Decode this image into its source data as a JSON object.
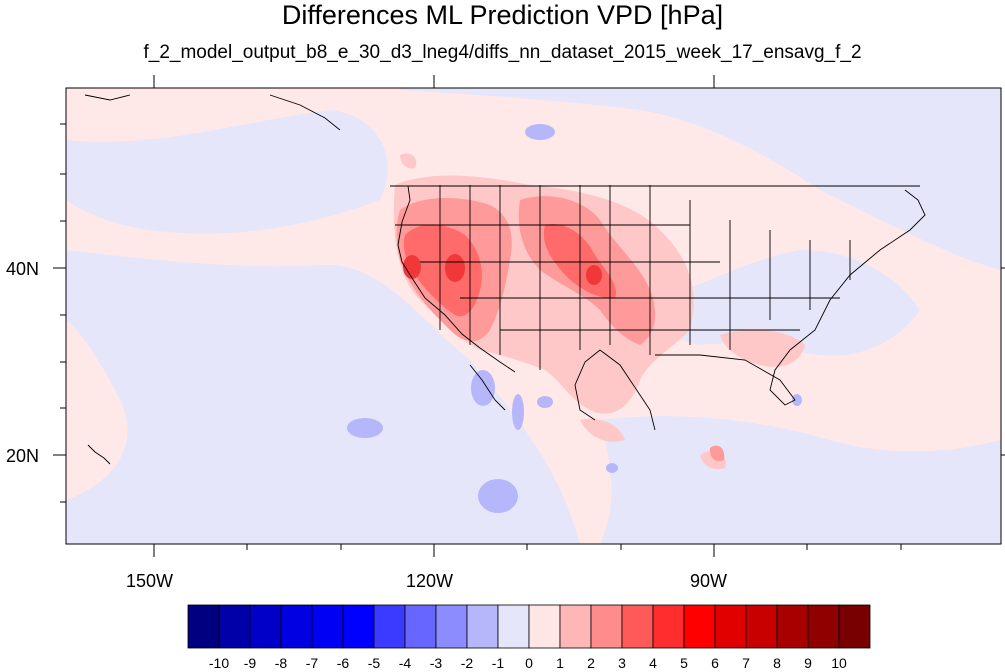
{
  "title": "Differences ML Prediction VPD [hPa]",
  "subtitle": "f_2_model_output_b8_e_30_d3_lneg4/diffs_nn_dataset_2015_week_17_ensavg_f_2",
  "axes": {
    "lat_labels": [
      "40N",
      "20N"
    ],
    "lon_labels": [
      "150W",
      "120W",
      "90W"
    ]
  },
  "colorbar": {
    "labels": [
      "-10",
      "-9",
      "-8",
      "-7",
      "-6",
      "-5",
      "-4",
      "-3",
      "-2",
      "-1",
      "0",
      "1",
      "2",
      "3",
      "4",
      "5",
      "6",
      "7",
      "8",
      "9",
      "10"
    ],
    "colors": [
      "#000080",
      "#0000a8",
      "#0000c8",
      "#0000e0",
      "#0000f5",
      "#0000ff",
      "#3b3bff",
      "#6767ff",
      "#8c8cff",
      "#b6b6fb",
      "#e6e6fa",
      "#ffe6e6",
      "#ffb6b6",
      "#ff8c8c",
      "#ff5a5a",
      "#ff2d2d",
      "#ff0000",
      "#e00000",
      "#c80000",
      "#a80000",
      "#900000",
      "#780000"
    ]
  },
  "colors": {
    "ocean_base": "#ffe8e8",
    "negative_light": "#e6e6fa",
    "positive_1": "#ffc8c8",
    "positive_2": "#ff9a9a",
    "positive_3": "#ff6a6a",
    "positive_4": "#f03838"
  }
}
